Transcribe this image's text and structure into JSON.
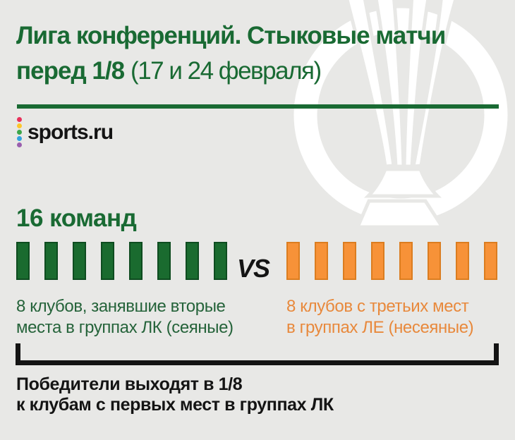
{
  "page": {
    "background": "#e8e8e6"
  },
  "header": {
    "title_line1": "Лига конференций. Стыковые матчи",
    "title_line2_bold": "перед 1/8",
    "title_line2_note": "(17 и 24 февраля)",
    "accent_color": "#196a33"
  },
  "logo": {
    "text": "sports.ru",
    "dot_colors": [
      "#e8315b",
      "#fdc62b",
      "#3ca64a",
      "#31a3dd",
      "#9a5fae"
    ]
  },
  "matchup": {
    "heading": "16 команд",
    "vs_label": "VS",
    "seeded": {
      "bar_count": 8,
      "bar_color": "#1a6b2f",
      "bar_border_color": "#0e4c20",
      "caption_line1": "8 клубов, занявшие вторые",
      "caption_line2": "места в группах ЛК (сеяные)",
      "caption_color": "#25633a"
    },
    "unseeded": {
      "bar_count": 8,
      "bar_color": "#f79238",
      "bar_border_color": "#db7d20",
      "caption_line1": "8 клубов с третьих мест",
      "caption_line2": "в группах ЛЕ (несеяные)",
      "caption_color": "#e8893c"
    }
  },
  "footer": {
    "line1": "Победители выходят в 1/8",
    "line2": "к клубам с первых мест в группах ЛК"
  },
  "watermark": {
    "icon": "uefa-conference-league-trophy",
    "color": "#ffffff"
  }
}
